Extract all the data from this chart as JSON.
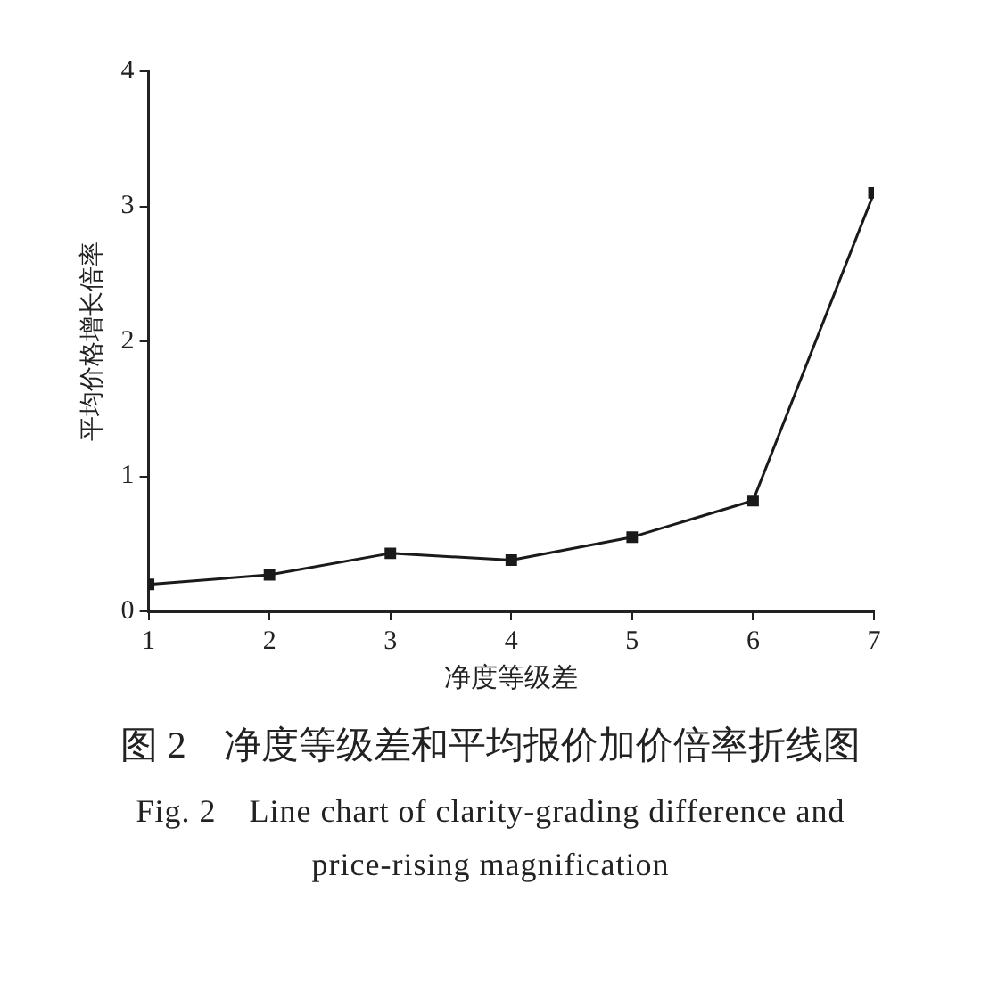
{
  "chart_data": {
    "type": "line",
    "title": "图 2　净度等级差和平均报价加价倍率折线图",
    "subtitle": "Fig. 2　Line chart of clarity-grading difference and price-rising magnification",
    "xlabel": "净度等级差",
    "ylabel": "平均价格增长倍率",
    "x": [
      1,
      2,
      3,
      4,
      5,
      6,
      7
    ],
    "series": [
      {
        "color": "#1a1a1a",
        "values": [
          0.2,
          0.27,
          0.43,
          0.38,
          0.55,
          0.82,
          3.1
        ]
      }
    ],
    "xlim": [
      1,
      7
    ],
    "xticks": [
      1,
      2,
      3,
      4,
      5,
      6,
      7
    ],
    "ylim": [
      0,
      4
    ],
    "yticks": [
      0,
      1,
      2,
      3,
      4
    ],
    "grid": false,
    "legend": false,
    "marker": "square",
    "line_style": "solid"
  }
}
